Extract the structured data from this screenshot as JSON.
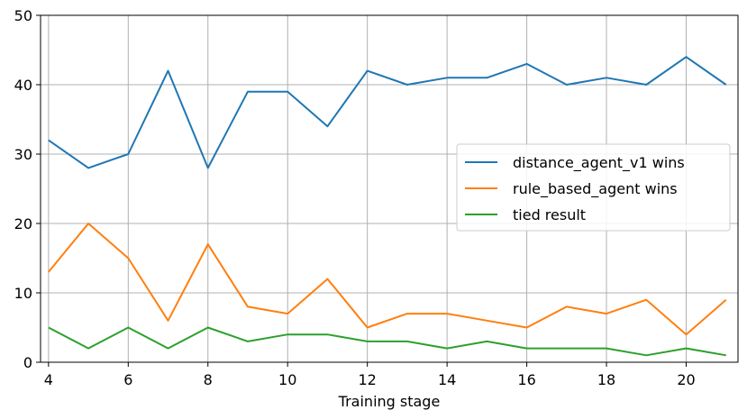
{
  "chart_data": {
    "type": "line",
    "title": "",
    "xlabel": "Training stage",
    "ylabel": "",
    "x": [
      4,
      5,
      6,
      7,
      8,
      9,
      10,
      11,
      12,
      13,
      14,
      15,
      16,
      17,
      18,
      19,
      20,
      21
    ],
    "xlim": [
      3.8,
      21.3
    ],
    "ylim": [
      0,
      50
    ],
    "xticks": [
      "4",
      "6",
      "8",
      "10",
      "12",
      "14",
      "16",
      "18",
      "20"
    ],
    "yticks": [
      "0",
      "10",
      "20",
      "30",
      "40",
      "50"
    ],
    "grid": true,
    "legend_position": "center-right",
    "series": [
      {
        "name": "distance_agent_v1 wins",
        "color": "#1f77b4",
        "values": [
          32,
          28,
          30,
          42,
          28,
          39,
          39,
          34,
          42,
          40,
          41,
          41,
          43,
          40,
          41,
          40,
          44,
          40
        ]
      },
      {
        "name": "rule_based_agent wins",
        "color": "#ff7f0e",
        "values": [
          13,
          20,
          15,
          6,
          17,
          8,
          7,
          12,
          5,
          7,
          7,
          6,
          5,
          8,
          7,
          9,
          4,
          9
        ]
      },
      {
        "name": "tied result",
        "color": "#2ca02c",
        "values": [
          5,
          2,
          5,
          2,
          5,
          3,
          4,
          4,
          3,
          3,
          2,
          3,
          2,
          2,
          2,
          1,
          2,
          1
        ]
      }
    ]
  }
}
